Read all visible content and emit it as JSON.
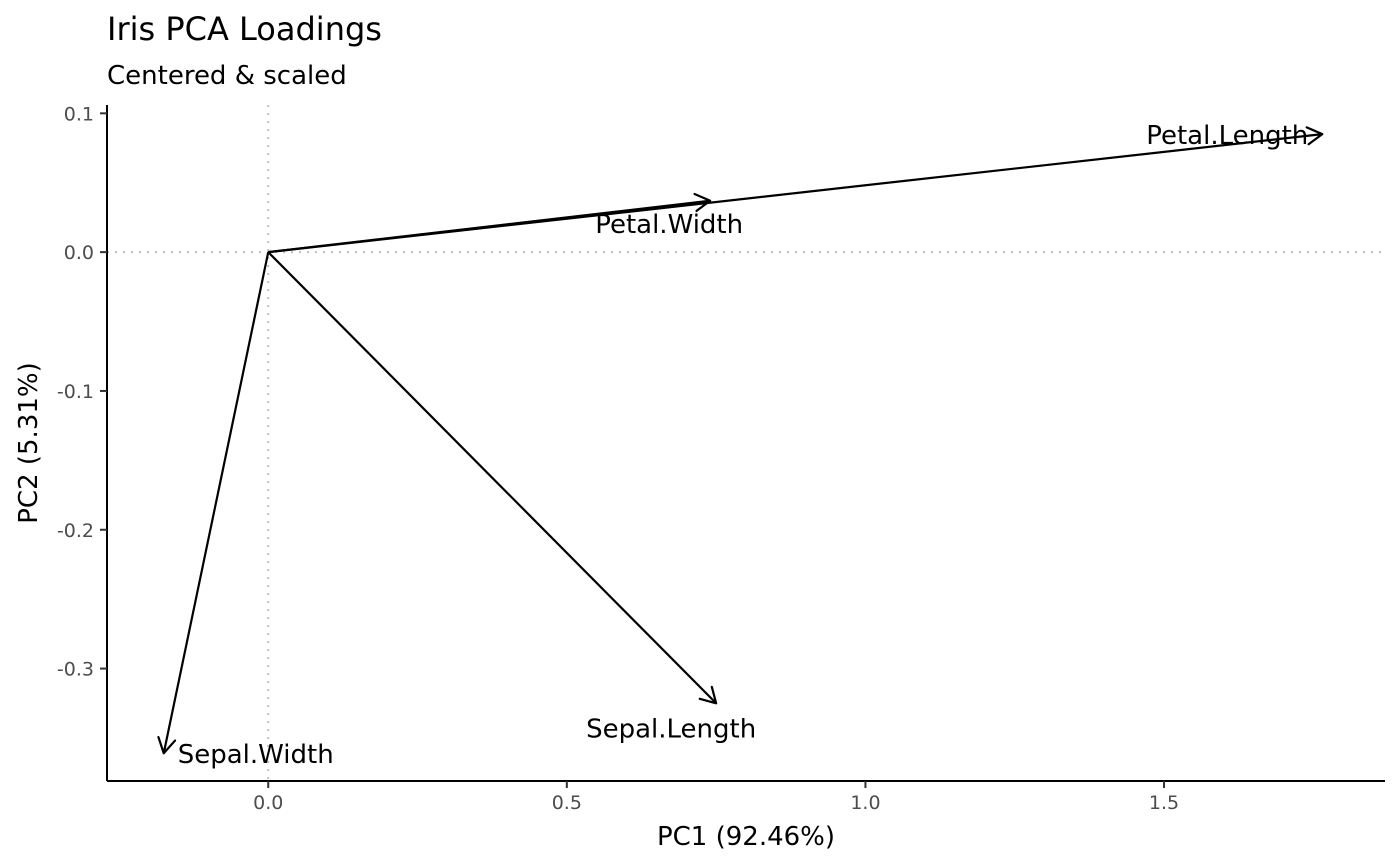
{
  "chart_data": {
    "type": "scatter",
    "title": "Iris PCA Loadings",
    "subtitle": "Centered & scaled",
    "xlabel": "PC1 (92.46%)",
    "ylabel": "PC2 (5.31%)",
    "xlim": [
      -0.27,
      1.87
    ],
    "ylim": [
      -0.381,
      0.106
    ],
    "xticks": [
      0.0,
      0.5,
      1.0,
      1.5
    ],
    "yticks": [
      -0.3,
      -0.2,
      -0.1,
      0.0,
      0.1
    ],
    "xtick_labels": [
      "0.0",
      "0.5",
      "1.0",
      "1.5"
    ],
    "ytick_labels": [
      "-0.3",
      "-0.2",
      "-0.1",
      "0.0",
      "0.1"
    ],
    "reference_lines": {
      "x": 0,
      "y": 0,
      "style": "dotted"
    },
    "grid": false,
    "color": "#000000",
    "loadings": [
      {
        "name": "Sepal.Length",
        "x": 0.75,
        "y": -0.325
      },
      {
        "name": "Sepal.Width",
        "x": -0.175,
        "y": -0.361
      },
      {
        "name": "Petal.Length",
        "x": 1.765,
        "y": 0.085
      },
      {
        "name": "Petal.Width",
        "x": 0.74,
        "y": 0.037
      }
    ]
  }
}
